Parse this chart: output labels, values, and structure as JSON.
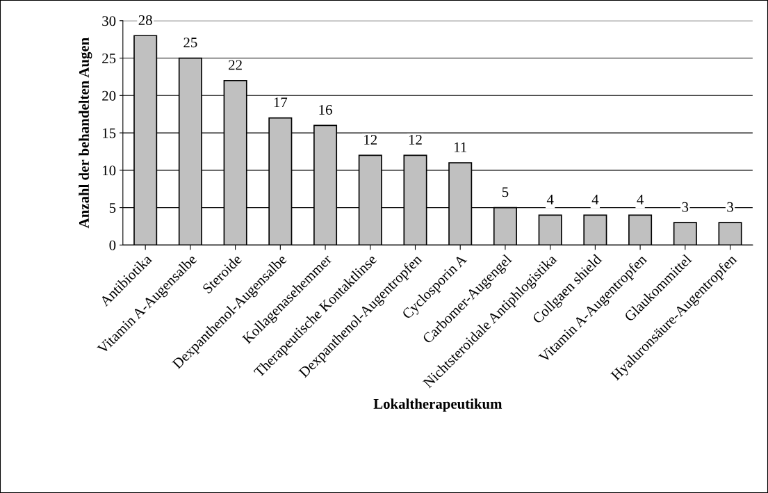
{
  "chart_data": {
    "type": "bar",
    "xlabel": "Lokaltherapeutikum",
    "ylabel": "Anzahl der behandelten Augen",
    "categories": [
      "Antibiotika",
      "Vitamin A-Augensalbe",
      "Steroide",
      "Dexpanthenol-Augensalbe",
      "Kollagenasehemmer",
      "Therapeutische Kontaktlinse",
      "Dexpanthenol-Augentropfen",
      "Cyclosporin A",
      "Carbomer-Augengel",
      "Nichtsteroidale Antiphlogistika",
      "Collgaen shield",
      "Vitamin A-Augentropfen",
      "Glaukommittel",
      "Hyaluronsäure-Augentropfen"
    ],
    "values": [
      28,
      25,
      22,
      17,
      16,
      12,
      12,
      11,
      5,
      4,
      4,
      4,
      3,
      3
    ],
    "color": "#c0c0c0",
    "ylim": [
      0,
      30
    ],
    "yticks": [
      0,
      5,
      10,
      15,
      20,
      25,
      30
    ],
    "grid": "y",
    "data_labels": true,
    "legend": false
  }
}
